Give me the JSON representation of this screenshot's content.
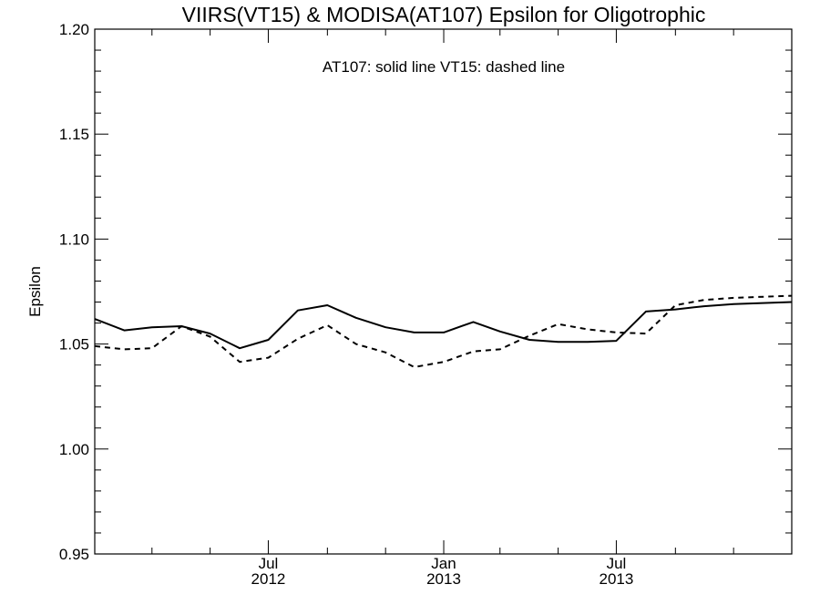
{
  "chart_data": {
    "type": "line",
    "title": "VIIRS(VT15) & MODISA(AT107)  Epsilon for Oligotrophic",
    "annotation": "AT107: solid line   VT15: dashed line",
    "xlabel": "",
    "ylabel": "Epsilon",
    "ylim": [
      0.95,
      1.2
    ],
    "xlim": [
      "2012-01-01",
      "2014-01-01"
    ],
    "yticks": [
      "0.95",
      "1.00",
      "1.05",
      "1.10",
      "1.15",
      "1.20"
    ],
    "xticks": [
      {
        "month": "Jul",
        "year": "2012",
        "date": "2012-07-01"
      },
      {
        "month": "Jan",
        "year": "2013",
        "date": "2013-01-01"
      },
      {
        "month": "Jul",
        "year": "2013",
        "date": "2013-07-01"
      }
    ],
    "x": [
      "2012-01-01",
      "2012-02-01",
      "2012-03-01",
      "2012-04-01",
      "2012-05-01",
      "2012-06-01",
      "2012-07-01",
      "2012-08-01",
      "2012-09-01",
      "2012-10-01",
      "2012-11-01",
      "2012-12-01",
      "2013-01-01",
      "2013-02-01",
      "2013-03-01",
      "2013-04-01",
      "2013-05-01",
      "2013-06-01",
      "2013-07-01",
      "2013-08-01",
      "2013-09-01",
      "2013-10-01",
      "2013-11-01",
      "2014-01-01"
    ],
    "series": [
      {
        "name": "AT107",
        "line": "solid",
        "values": [
          1.062,
          1.0565,
          1.058,
          1.0585,
          1.055,
          1.048,
          1.052,
          1.066,
          1.0685,
          1.0625,
          1.058,
          1.0555,
          1.0555,
          1.0605,
          1.056,
          1.052,
          1.051,
          1.051,
          1.0515,
          1.0655,
          1.0665,
          1.068,
          1.069,
          1.07
        ]
      },
      {
        "name": "VT15",
        "line": "dashed",
        "values": [
          1.049,
          1.0475,
          1.048,
          1.0585,
          1.0535,
          1.0415,
          1.0435,
          1.0525,
          1.059,
          1.05,
          1.046,
          1.039,
          1.0415,
          1.0465,
          1.0475,
          1.054,
          1.0595,
          1.057,
          1.0555,
          1.055,
          1.0685,
          1.071,
          1.072,
          1.073
        ]
      }
    ]
  }
}
